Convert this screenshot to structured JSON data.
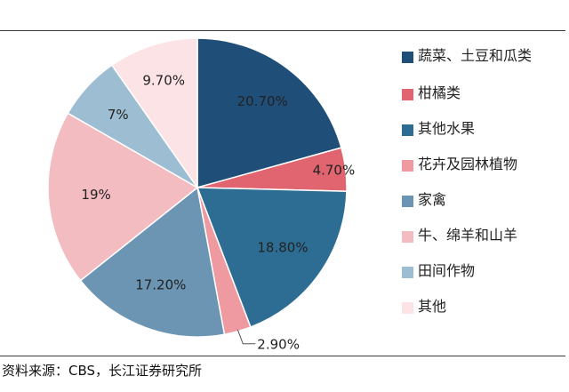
{
  "chart_data": {
    "type": "pie",
    "start_angle_deg": 0,
    "direction": "clockwise",
    "legend_position": "right",
    "slices": [
      {
        "name": "蔬菜、土豆和瓜类",
        "value": 20.7,
        "label": "20.70%",
        "color": "#1f4e79"
      },
      {
        "name": "柑橘类",
        "value": 4.7,
        "label": "4.70%",
        "color": "#e06570"
      },
      {
        "name": "其他水果",
        "value": 18.8,
        "label": "18.80%",
        "color": "#2e6d93"
      },
      {
        "name": "花卉及园林植物",
        "value": 2.9,
        "label": "2.90%",
        "color": "#ef9aa0"
      },
      {
        "name": "家禽",
        "value": 17.2,
        "label": "17.20%",
        "color": "#6b95b3"
      },
      {
        "name": "牛、绵羊和山羊",
        "value": 19.0,
        "label": "19%",
        "color": "#f2bcc1"
      },
      {
        "name": "田间作物",
        "value": 7.0,
        "label": "7%",
        "color": "#9dbdd2"
      },
      {
        "name": "其他",
        "value": 9.7,
        "label": "9.70%",
        "color": "#fbe3e6"
      }
    ]
  },
  "source": "资料来源：CBS，长江证券研究所"
}
